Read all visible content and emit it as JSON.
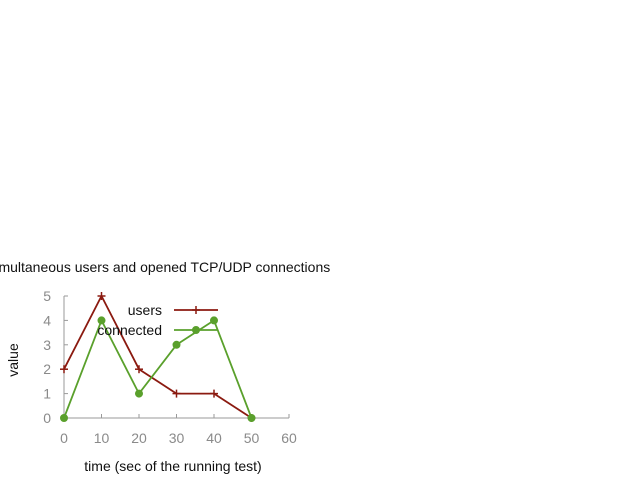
{
  "chart_data": {
    "type": "line",
    "title": "Simultaneous users and opened TCP/UDP connections",
    "xlabel": "time (sec of the running test)",
    "ylabel": "value",
    "xlim": [
      0,
      60
    ],
    "ylim": [
      0,
      5
    ],
    "x_ticks": [
      "0",
      "10",
      "20",
      "30",
      "40",
      "50",
      "60"
    ],
    "y_ticks": [
      "0",
      "1",
      "2",
      "3",
      "4",
      "5"
    ],
    "grid": false,
    "legend_position": "top-right",
    "series": [
      {
        "name": "users",
        "color": "#8b1a10",
        "marker": "plus",
        "x": [
          0,
          10,
          20,
          30,
          40,
          50
        ],
        "y": [
          2,
          5,
          2,
          1,
          1,
          0
        ]
      },
      {
        "name": "connected",
        "color": "#5aa02c",
        "marker": "dot",
        "x": [
          0,
          10,
          20,
          30,
          40,
          50
        ],
        "y": [
          0,
          4,
          1,
          3,
          4,
          0
        ]
      }
    ]
  }
}
